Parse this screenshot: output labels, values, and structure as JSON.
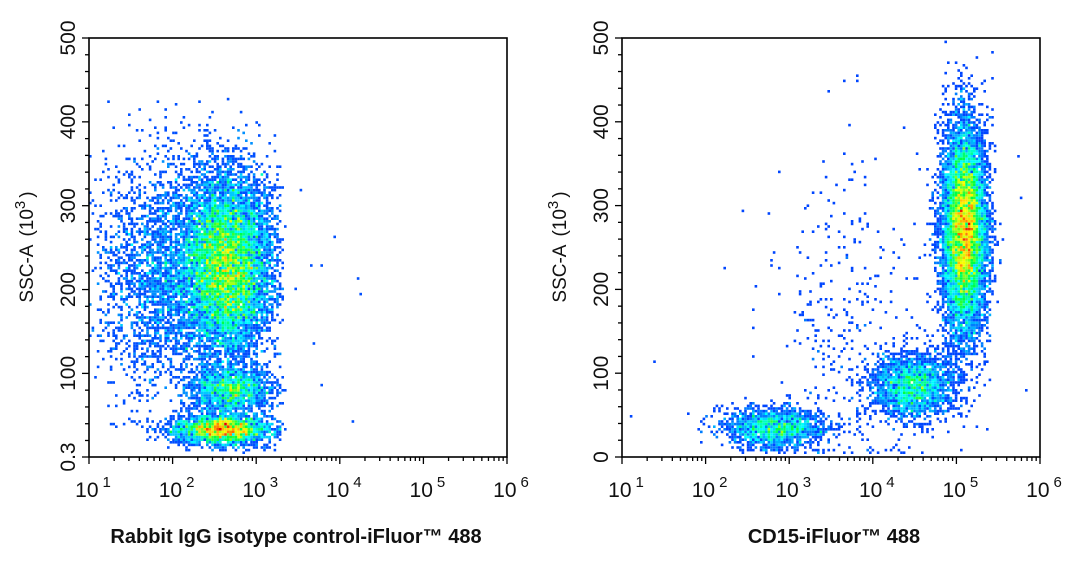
{
  "colors": {
    "low": "#0000ff",
    "mid_low": "#00ffff",
    "mid": "#00ff00",
    "mid_high": "#ffff00",
    "high": "#ff0000",
    "axis": "#000000"
  },
  "chart_data": [
    {
      "type": "heatmap",
      "subtype": "flow cytometry density plot",
      "xlabel": "Rabbit IgG isotype control-iFluor™ 488",
      "ylabel": "SSC-A",
      "ylabel_unit": "(10",
      "ylabel_unit_exp": "3",
      "ylabel_unit_close": ")",
      "x_scale": "log",
      "xlim": [
        10,
        1000000
      ],
      "ylim": [
        0.3,
        500
      ],
      "x_ticks": [
        {
          "base": "10",
          "exp": "1"
        },
        {
          "base": "10",
          "exp": "2"
        },
        {
          "base": "10",
          "exp": "3"
        },
        {
          "base": "10",
          "exp": "4"
        },
        {
          "base": "10",
          "exp": "5"
        },
        {
          "base": "10",
          "exp": "6"
        }
      ],
      "y_ticks": [
        {
          "value": 0.3,
          "label": "0.3"
        },
        {
          "value": 100,
          "label": "100"
        },
        {
          "value": 200,
          "label": "200"
        },
        {
          "value": 300,
          "label": "300"
        },
        {
          "value": 400,
          "label": "400"
        },
        {
          "value": 500,
          "label": "500"
        }
      ],
      "grid": false,
      "populations": [
        {
          "x_center": 450,
          "y_center": 230,
          "x_spread_decades": 0.28,
          "y_spread": 55,
          "events": 9000
        },
        {
          "x_center": 80,
          "y_center": 220,
          "x_spread_decades": 0.4,
          "y_spread": 70,
          "events": 2600
        },
        {
          "x_center": 400,
          "y_center": 33,
          "x_spread_decades": 0.3,
          "y_spread": 9,
          "events": 2600
        },
        {
          "x_center": 500,
          "y_center": 80,
          "x_spread_decades": 0.25,
          "y_spread": 14,
          "events": 1500
        }
      ],
      "x_cutoff": 2000,
      "outliers": [
        [
          3500,
          320
        ],
        [
          9000,
          262
        ],
        [
          4500,
          228
        ],
        [
          6000,
          228
        ],
        [
          16000,
          213
        ],
        [
          18000,
          195
        ],
        [
          6000,
          85
        ],
        [
          14000,
          42
        ],
        [
          5000,
          135
        ],
        [
          3000,
          200
        ]
      ]
    },
    {
      "type": "heatmap",
      "subtype": "flow cytometry density plot",
      "xlabel": "CD15-iFluor™ 488",
      "ylabel": "SSC-A",
      "ylabel_unit": "(10",
      "ylabel_unit_exp": "3",
      "ylabel_unit_close": ")",
      "x_scale": "log",
      "xlim": [
        10,
        1000000
      ],
      "ylim": [
        0,
        500
      ],
      "x_ticks": [
        {
          "base": "10",
          "exp": "1"
        },
        {
          "base": "10",
          "exp": "2"
        },
        {
          "base": "10",
          "exp": "3"
        },
        {
          "base": "10",
          "exp": "4"
        },
        {
          "base": "10",
          "exp": "5"
        },
        {
          "base": "10",
          "exp": "6"
        }
      ],
      "y_ticks": [
        {
          "value": 0,
          "label": "0"
        },
        {
          "value": 100,
          "label": "100"
        },
        {
          "value": 200,
          "label": "200"
        },
        {
          "value": 300,
          "label": "300"
        },
        {
          "value": 400,
          "label": "400"
        },
        {
          "value": 500,
          "label": "500"
        }
      ],
      "grid": false,
      "populations": [
        {
          "x_center": 125000,
          "y_center": 270,
          "x_spread_decades": 0.13,
          "y_spread": 62,
          "events": 9500
        },
        {
          "x_center": 30000,
          "y_center": 85,
          "x_spread_decades": 0.25,
          "y_spread": 20,
          "events": 2200
        },
        {
          "x_center": 700,
          "y_center": 35,
          "x_spread_decades": 0.3,
          "y_spread": 12,
          "events": 1700
        },
        {
          "x_center": 6000,
          "y_center": 150,
          "x_spread_decades": 0.5,
          "y_spread": 100,
          "events": 350
        }
      ],
      "x_cutoff": 1000000,
      "outliers": [
        [
          170,
          225
        ],
        [
          25,
          115
        ],
        [
          13,
          50
        ],
        [
          700000,
          80
        ],
        [
          600000,
          310
        ],
        [
          550000,
          358
        ],
        [
          4500,
          448
        ],
        [
          6500,
          448
        ],
        [
          3000,
          437
        ],
        [
          1500,
          170
        ]
      ]
    }
  ]
}
